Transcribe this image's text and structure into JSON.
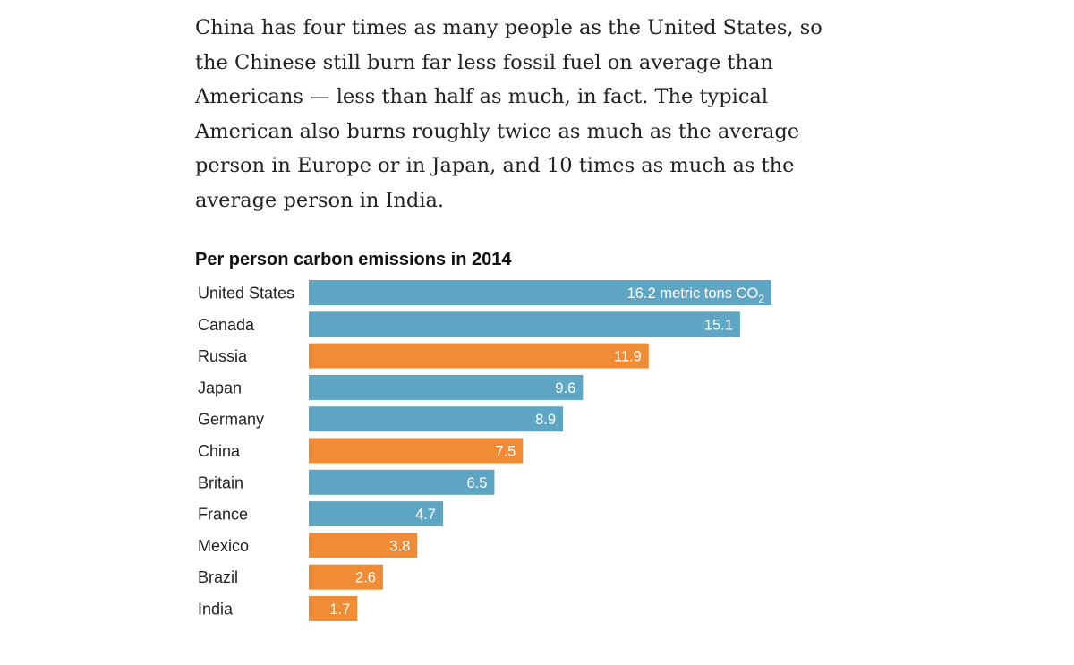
{
  "article": {
    "paragraph_lines": [
      "China has four times as many people as the United States, so",
      "the Chinese still burn far less fossil fuel on average than",
      "Americans — less than half as much, in fact. The typical",
      "American also burns roughly twice as much as the average",
      "person in Europe or in Japan, and 10 times as much as the",
      "average person in India."
    ]
  },
  "chart_data": {
    "type": "bar",
    "orientation": "horizontal",
    "title": "Per person carbon emissions in 2014",
    "categories": [
      "United States",
      "Canada",
      "Russia",
      "Japan",
      "Germany",
      "China",
      "Britain",
      "France",
      "Mexico",
      "Brazil",
      "India"
    ],
    "values": [
      16.2,
      15.1,
      11.9,
      9.6,
      8.9,
      7.5,
      6.5,
      4.7,
      3.8,
      2.6,
      1.7
    ],
    "value_labels": [
      "16.2",
      "15.1",
      "11.9",
      "9.6",
      "8.9",
      "7.5",
      "6.5",
      "4.7",
      "3.8",
      "2.6",
      "1.7"
    ],
    "first_label_unit": " metric tons CO",
    "first_label_subscript": "2",
    "highlight": [
      false,
      false,
      true,
      false,
      false,
      true,
      false,
      false,
      true,
      true,
      true
    ],
    "colors": {
      "default": "#5ea6c4",
      "highlight": "#f08b36"
    },
    "xlim": [
      0,
      16.2
    ],
    "grid": false,
    "legend": "none"
  }
}
